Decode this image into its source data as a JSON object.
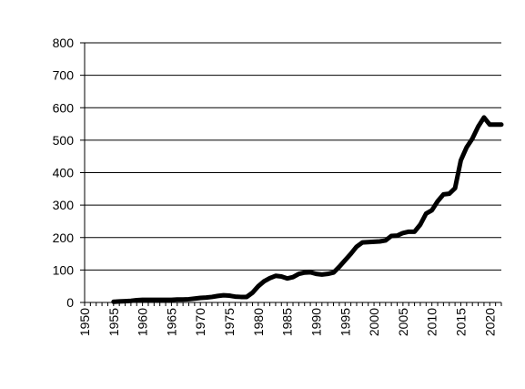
{
  "chart_data": {
    "type": "line",
    "title": "",
    "xlabel": "",
    "ylabel": "",
    "xlim": [
      1950,
      2022
    ],
    "ylim": [
      0,
      800
    ],
    "yticks": [
      0,
      100,
      200,
      300,
      400,
      500,
      600,
      700,
      800
    ],
    "xticks": [
      1950,
      1955,
      1960,
      1965,
      1970,
      1975,
      1980,
      1985,
      1990,
      1995,
      2000,
      2005,
      2010,
      2015,
      2020
    ],
    "grid": "horizontal",
    "legend": "none",
    "colors": {
      "line": "#000000",
      "grid": "#000000",
      "axis": "#000000"
    },
    "series": [
      {
        "x": [
          1955,
          1956,
          1957,
          1958,
          1959,
          1960,
          1961,
          1962,
          1963,
          1964,
          1965,
          1966,
          1967,
          1968,
          1969,
          1970,
          1971,
          1972,
          1973,
          1974,
          1975,
          1976,
          1977,
          1978,
          1979,
          1980,
          1981,
          1982,
          1983,
          1984,
          1985,
          1986,
          1987,
          1988,
          1989,
          1990,
          1991,
          1992,
          1993,
          1994,
          1995,
          1996,
          1997,
          1998,
          1999,
          2000,
          2001,
          2002,
          2003,
          2004,
          2005,
          2006,
          2007,
          2008,
          2009,
          2010,
          2011,
          2012,
          2013,
          2014,
          2015,
          2016,
          2017,
          2018,
          2019,
          2020,
          2021,
          2022
        ],
        "values": [
          2,
          3,
          4,
          5,
          7,
          8,
          8,
          8,
          8,
          8,
          8,
          9,
          9,
          10,
          12,
          14,
          15,
          17,
          20,
          22,
          21,
          18,
          17,
          17,
          30,
          50,
          65,
          75,
          82,
          80,
          74,
          78,
          88,
          92,
          93,
          88,
          86,
          88,
          92,
          110,
          130,
          150,
          172,
          185,
          186,
          187,
          188,
          191,
          205,
          206,
          214,
          218,
          218,
          240,
          274,
          284,
          312,
          333,
          335,
          352,
          438,
          478,
          505,
          542,
          570,
          548,
          548,
          548
        ]
      }
    ]
  }
}
